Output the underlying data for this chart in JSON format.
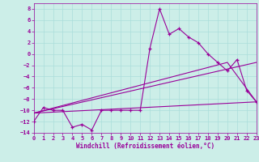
{
  "bg_color": "#cceee8",
  "grid_color": "#aaddda",
  "line_color": "#990099",
  "hours": [
    0,
    1,
    2,
    3,
    4,
    5,
    6,
    7,
    8,
    9,
    10,
    11,
    12,
    13,
    14,
    15,
    16,
    17,
    18,
    19,
    20,
    21,
    22,
    23
  ],
  "temp": [
    -12,
    -9.5,
    -10,
    -10,
    -13,
    -12.5,
    -13.5,
    -10,
    -10,
    -10,
    -10,
    -10,
    1,
    8,
    3.5,
    4.5,
    3,
    2,
    0,
    -1.5,
    -3,
    -1,
    -6.5,
    -8.5
  ],
  "diag_line_x": [
    0,
    23
  ],
  "diag_line_y": [
    -10.5,
    -1.5
  ],
  "flat_line_x": [
    0,
    23
  ],
  "flat_line_y": [
    -10.5,
    -8.5
  ],
  "tri_line_x": [
    0,
    20,
    23
  ],
  "tri_line_y": [
    -10.5,
    -1.5,
    -8.5
  ],
  "xlabel": "Windchill (Refroidissement éolien,°C)",
  "ylim": [
    -14,
    9
  ],
  "xlim": [
    0,
    23
  ],
  "yticks": [
    -14,
    -12,
    -10,
    -8,
    -6,
    -4,
    -2,
    0,
    2,
    4,
    6,
    8
  ],
  "xticks": [
    0,
    1,
    2,
    3,
    4,
    5,
    6,
    7,
    8,
    9,
    10,
    11,
    12,
    13,
    14,
    15,
    16,
    17,
    18,
    19,
    20,
    21,
    22,
    23
  ]
}
